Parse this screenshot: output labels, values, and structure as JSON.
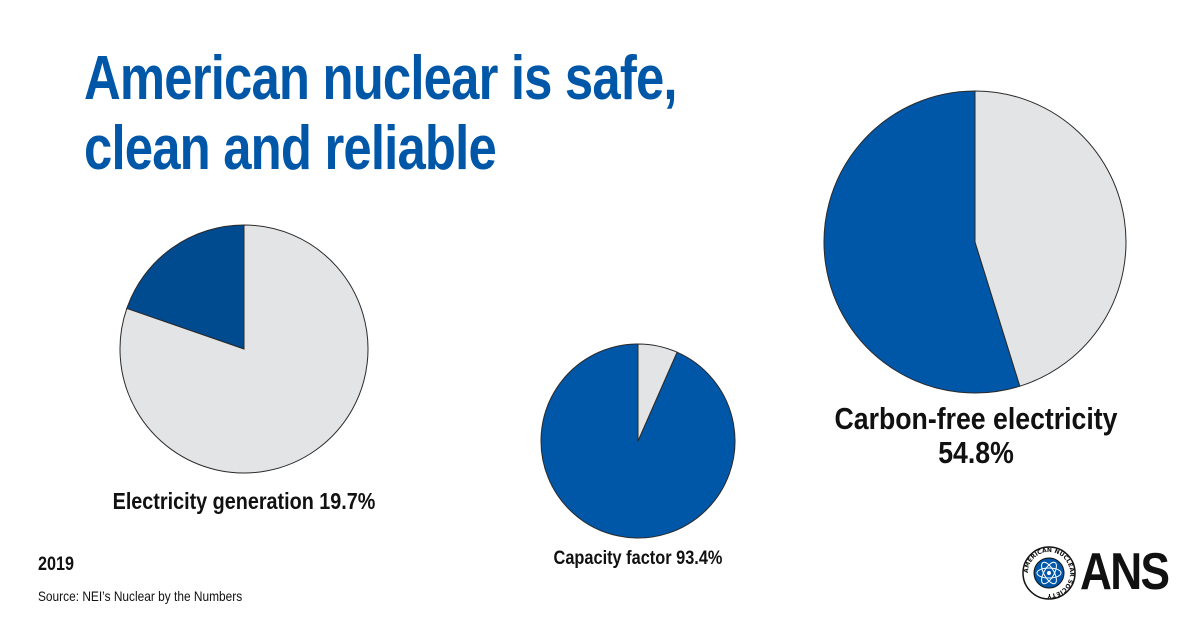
{
  "title": {
    "line1": "American nuclear is safe,",
    "line2": "clean and reliable"
  },
  "footer": {
    "year": "2019",
    "source": "Source: NEI’s Nuclear by the Numbers"
  },
  "logo": {
    "text": "ANS",
    "seal_text": "AMERICAN NUCLEAR SOCIETY"
  },
  "colors": {
    "title": "#0057a8",
    "nuclear": "#0057a8",
    "nuclear_dark": "#004a8f",
    "other": "#e3e4e6"
  },
  "chart_data": [
    {
      "type": "pie",
      "label": "Electricity generation 19.7%",
      "value": 19.7,
      "remainder": 80.3,
      "highlight_color": "#004a8f",
      "rest_color": "#e3e4e6"
    },
    {
      "type": "pie",
      "label": "Capacity factor 93.4%",
      "value": 93.4,
      "remainder": 6.6,
      "highlight_color": "#0057a8",
      "rest_color": "#e3e4e6"
    },
    {
      "type": "pie",
      "label_line1": "Carbon-free electricity",
      "label_line2": "54.8%",
      "value": 54.8,
      "remainder": 45.2,
      "highlight_color": "#0057a8",
      "rest_color": "#e3e4e6"
    }
  ]
}
